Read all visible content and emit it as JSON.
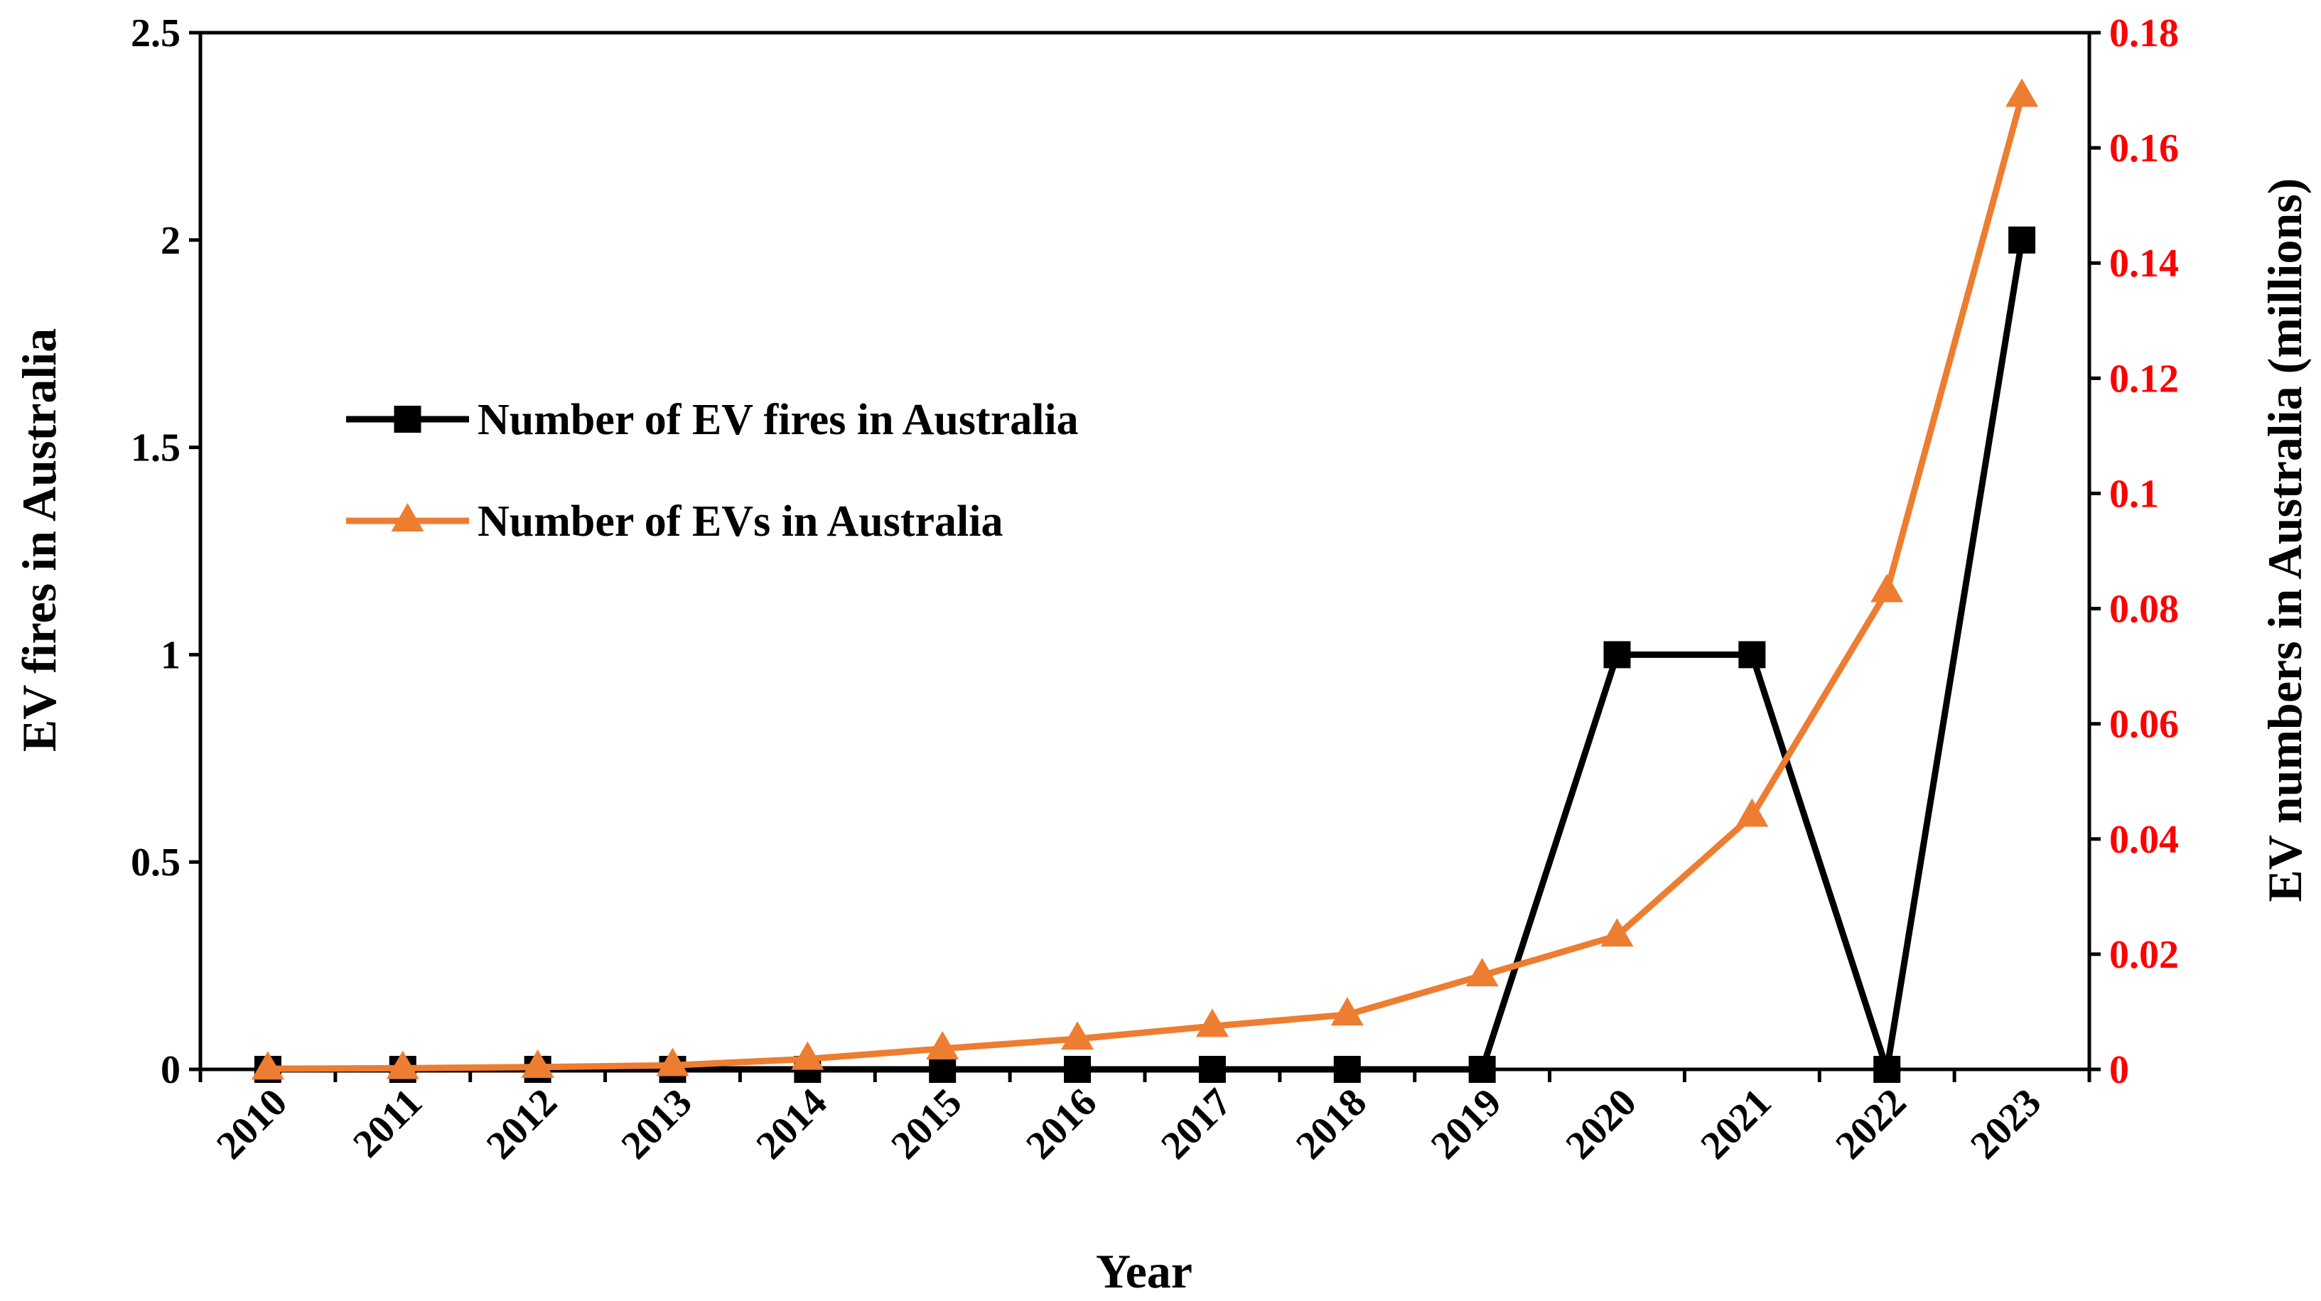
{
  "chart_data": {
    "type": "line",
    "xlabel": "Year",
    "ylabel_left": "EV fires in Australia",
    "ylabel_right": "EV numbers in Australia (millions)",
    "x": [
      "2010",
      "2011",
      "2012",
      "2013",
      "2014",
      "2015",
      "2016",
      "2017",
      "2018",
      "2019",
      "2020",
      "2021",
      "2022",
      "2023"
    ],
    "ylim_left": [
      0,
      2.5
    ],
    "yticks_left": [
      "0",
      "0.5",
      "1",
      "1.5",
      "2",
      "2.5"
    ],
    "ylim_right": [
      0,
      0.18
    ],
    "yticks_right": [
      "0",
      "0.02",
      "0.04",
      "0.06",
      "0.08",
      "0.1",
      "0.12",
      "0.14",
      "0.16",
      "0.18"
    ],
    "grid": false,
    "legend_position": "upper-left",
    "series": [
      {
        "name": "Number of EV fires in Australia",
        "axis": "left",
        "color": "#000000",
        "marker": "square",
        "values": [
          0,
          0,
          0,
          0,
          0,
          0,
          0,
          0,
          0,
          0,
          1,
          1,
          0,
          2
        ]
      },
      {
        "name": "Number of EVs in Australia",
        "axis": "right",
        "color": "#ed7d31",
        "marker": "triangle",
        "values": [
          0.0001,
          0.0002,
          0.0004,
          0.0007,
          0.0018,
          0.0036,
          0.0053,
          0.0075,
          0.0095,
          0.0163,
          0.0232,
          0.044,
          0.083,
          0.169
        ]
      }
    ],
    "right_axis_color": "#ff0000"
  }
}
